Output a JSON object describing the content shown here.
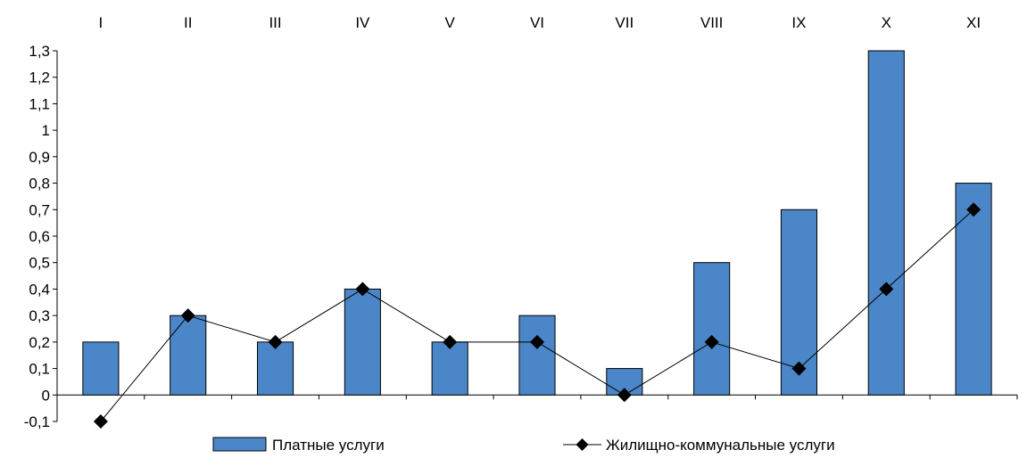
{
  "chart_data": {
    "type": "bar",
    "title": "",
    "xlabel": "",
    "ylabel": "",
    "categories": [
      "I",
      "II",
      "III",
      "IV",
      "V",
      "VI",
      "VII",
      "VIII",
      "IX",
      "X",
      "XI"
    ],
    "series": [
      {
        "name": "Платные услуги",
        "type": "bar",
        "color": "#4a86c8",
        "values": [
          0.2,
          0.3,
          0.2,
          0.4,
          0.2,
          0.3,
          0.1,
          0.5,
          0.7,
          1.3,
          0.8
        ]
      },
      {
        "name": "Жилищно-коммунальные услуги",
        "type": "line",
        "color": "#000000",
        "values": [
          -0.1,
          0.3,
          0.2,
          0.4,
          0.2,
          0.2,
          0.0,
          0.2,
          0.1,
          0.4,
          0.7
        ]
      }
    ],
    "ylim": [
      -0.1,
      1.3
    ],
    "yticks": [
      "-0,1",
      "0",
      "0,1",
      "0,2",
      "0,3",
      "0,4",
      "0,5",
      "0,6",
      "0,7",
      "0,8",
      "0,9",
      "1",
      "1,1",
      "1,2",
      "1,3"
    ],
    "category_labels_position": "top",
    "grid": false,
    "legend_position": "bottom"
  }
}
